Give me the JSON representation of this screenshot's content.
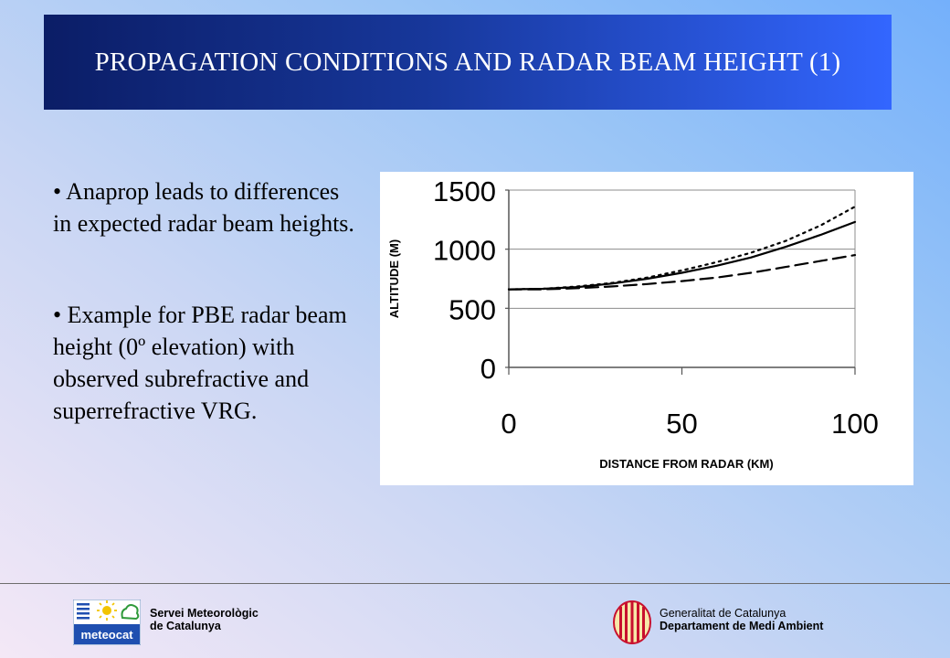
{
  "title": "PROPAGATION CONDITIONS AND RADAR BEAM HEIGHT (1)",
  "bullets": [
    "• Anaprop leads to differences in expected radar beam heights.",
    "• Example for PBE radar beam height (0º elevation) with observed subrefractive and superrefractive VRG."
  ],
  "footer": {
    "left_logo_text": "meteocat",
    "left_org_line1": "Servei Meteorològic",
    "left_org_line2": "de Catalunya",
    "right_org_line1": "Generalitat de Catalunya",
    "right_org_line2": "Departament de Medi Ambient"
  },
  "colors": {
    "title_bar_dark": "#0b1d66",
    "title_bar_light": "#3366ff",
    "logo_blue": "#1f4fb0",
    "logo_yellow": "#f2c400",
    "logo_green": "#2f9a3a",
    "seal_red": "#c8102e"
  },
  "chart_data": {
    "type": "line",
    "xlabel": "DISTANCE FROM RADAR (KM)",
    "ylabel": "ALTITUDE (M)",
    "xlim": [
      0,
      100
    ],
    "ylim": [
      0,
      1500
    ],
    "xticks": [
      0,
      50,
      100
    ],
    "yticks": [
      0,
      500,
      1000,
      1500
    ],
    "grid": "horizontal",
    "series": [
      {
        "style": "solid",
        "x": [
          0,
          10,
          20,
          30,
          40,
          50,
          60,
          70,
          80,
          90,
          100
        ],
        "values": [
          660,
          665,
          680,
          710,
          750,
          800,
          860,
          930,
          1020,
          1120,
          1230
        ]
      },
      {
        "style": "dotted",
        "x": [
          0,
          10,
          20,
          30,
          40,
          50,
          60,
          70,
          80,
          90,
          100
        ],
        "values": [
          660,
          665,
          685,
          715,
          760,
          820,
          890,
          970,
          1070,
          1200,
          1360
        ]
      },
      {
        "style": "dashed",
        "x": [
          0,
          10,
          20,
          30,
          40,
          50,
          60,
          70,
          80,
          90,
          100
        ],
        "values": [
          660,
          660,
          670,
          685,
          705,
          730,
          760,
          800,
          850,
          900,
          950
        ]
      }
    ]
  }
}
